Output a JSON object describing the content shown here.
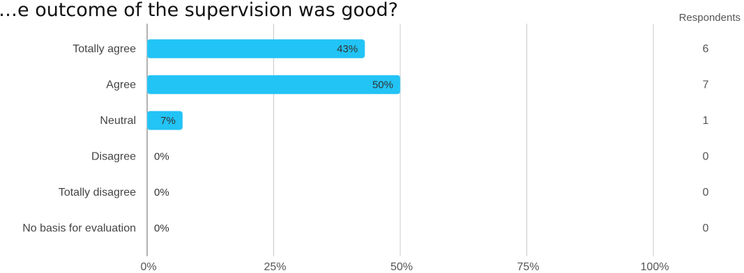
{
  "title": "…e outcome of the supervision was good?",
  "respondents_header": "Respondents",
  "chart_data": {
    "type": "bar",
    "orientation": "horizontal",
    "title": "…e outcome of the supervision was good?",
    "categories": [
      "Totally agree",
      "Agree",
      "Neutral",
      "Disagree",
      "Totally disagree",
      "No basis for evaluation"
    ],
    "values": [
      43,
      50,
      7,
      0,
      0,
      0
    ],
    "value_labels": [
      "43%",
      "50%",
      "7%",
      "0%",
      "0%",
      "0%"
    ],
    "respondents": [
      6,
      7,
      1,
      0,
      0,
      0
    ],
    "xlim": [
      0,
      100
    ],
    "xticks": [
      0,
      25,
      50,
      75,
      100
    ],
    "xtick_labels": [
      "0%",
      "25%",
      "50%",
      "75%",
      "100%"
    ],
    "grid": true,
    "bar_color": "#22c3f5"
  }
}
